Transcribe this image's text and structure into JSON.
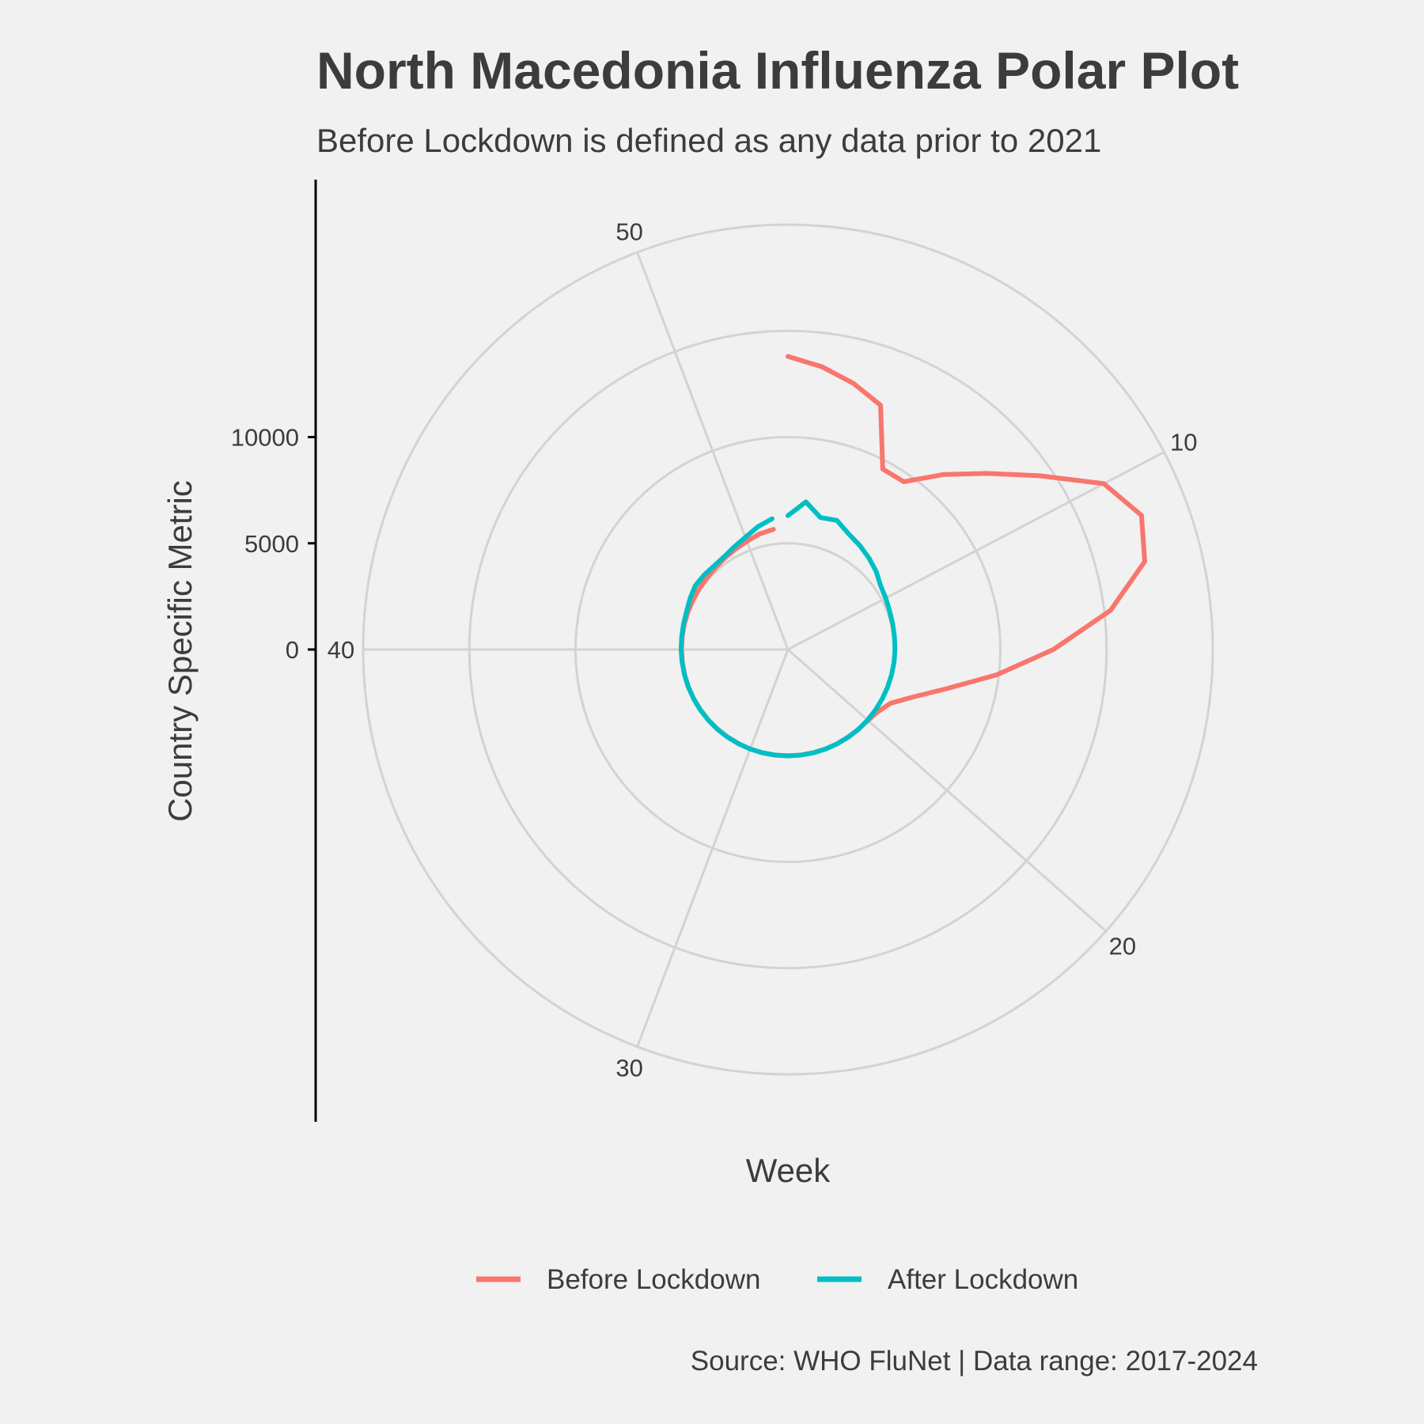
{
  "title": "North Macedonia Influenza Polar Plot",
  "subtitle": "Before Lockdown is defined as any data prior to 2021",
  "caption": "Source: WHO FluNet | Data range: 2017-2024",
  "chart_data": {
    "type": "line",
    "coord": "polar",
    "title": "North Macedonia Influenza Polar Plot",
    "subtitle": "Before Lockdown is defined as any data prior to 2021",
    "xlabel": "Week",
    "ylabel": "Country Specific Metric",
    "x_ticks": [
      10,
      20,
      30,
      40,
      50
    ],
    "y_ticks": [
      0,
      5000,
      10000
    ],
    "x_range": [
      1,
      53
    ],
    "y_range": [
      -5000,
      15000
    ],
    "grid": true,
    "legend_position": "bottom",
    "series": [
      {
        "name": "Before Lockdown",
        "color": "#F8766D",
        "points": [
          {
            "x": 1,
            "y": 8800
          },
          {
            "x": 2,
            "y": 8400
          },
          {
            "x": 3,
            "y": 7900
          },
          {
            "x": 4,
            "y": 7300
          },
          {
            "x": 5,
            "y": 4600
          },
          {
            "x": 6,
            "y": 4600
          },
          {
            "x": 7,
            "y": 6000
          },
          {
            "x": 8,
            "y": 7500
          },
          {
            "x": 9,
            "y": 9400
          },
          {
            "x": 10,
            "y": 11800
          },
          {
            "x": 11,
            "y": 12800
          },
          {
            "x": 12,
            "y": 12300
          },
          {
            "x": 13,
            "y": 10300
          },
          {
            "x": 14,
            "y": 7500
          },
          {
            "x": 15,
            "y": 4900
          },
          {
            "x": 16,
            "y": 2700
          },
          {
            "x": 17,
            "y": 1300
          },
          {
            "x": 18,
            "y": 450
          },
          {
            "x": 19,
            "y": 150
          },
          {
            "x": 20,
            "y": 30
          },
          {
            "x": 21,
            "y": 10
          },
          {
            "x": 22,
            "y": 5
          },
          {
            "x": 23,
            "y": 5
          },
          {
            "x": 24,
            "y": 5
          },
          {
            "x": 25,
            "y": 5
          },
          {
            "x": 26,
            "y": 5
          },
          {
            "x": 27,
            "y": 5
          },
          {
            "x": 28,
            "y": 5
          },
          {
            "x": 29,
            "y": 5
          },
          {
            "x": 30,
            "y": 5
          },
          {
            "x": 31,
            "y": 5
          },
          {
            "x": 32,
            "y": 5
          },
          {
            "x": 33,
            "y": 5
          },
          {
            "x": 34,
            "y": 5
          },
          {
            "x": 35,
            "y": 5
          },
          {
            "x": 36,
            "y": 5
          },
          {
            "x": 37,
            "y": 5
          },
          {
            "x": 38,
            "y": 5
          },
          {
            "x": 39,
            "y": 5
          },
          {
            "x": 40,
            "y": 10
          },
          {
            "x": 41,
            "y": 15
          },
          {
            "x": 42,
            "y": 20
          },
          {
            "x": 43,
            "y": 30
          },
          {
            "x": 44,
            "y": 40
          },
          {
            "x": 45,
            "y": 60
          },
          {
            "x": 46,
            "y": 90
          },
          {
            "x": 47,
            "y": 140
          },
          {
            "x": 48,
            "y": 230
          },
          {
            "x": 49,
            "y": 330
          },
          {
            "x": 50,
            "y": 450
          },
          {
            "x": 51,
            "y": 600
          },
          {
            "x": 52,
            "y": 700
          }
        ]
      },
      {
        "name": "After Lockdown",
        "color": "#00BFC4",
        "points": [
          {
            "x": 1,
            "y": 1300
          },
          {
            "x": 2,
            "y": 2000
          },
          {
            "x": 3,
            "y": 1400
          },
          {
            "x": 4,
            "y": 1500
          },
          {
            "x": 5,
            "y": 1150
          },
          {
            "x": 6,
            "y": 950
          },
          {
            "x": 7,
            "y": 750
          },
          {
            "x": 8,
            "y": 550
          },
          {
            "x": 9,
            "y": 300
          },
          {
            "x": 10,
            "y": 200
          },
          {
            "x": 11,
            "y": 120
          },
          {
            "x": 12,
            "y": 80
          },
          {
            "x": 13,
            "y": 50
          },
          {
            "x": 14,
            "y": 40
          },
          {
            "x": 15,
            "y": 30
          },
          {
            "x": 16,
            "y": 20
          },
          {
            "x": 17,
            "y": 15
          },
          {
            "x": 18,
            "y": 10
          },
          {
            "x": 19,
            "y": 10
          },
          {
            "x": 20,
            "y": 10
          },
          {
            "x": 21,
            "y": 10
          },
          {
            "x": 22,
            "y": 10
          },
          {
            "x": 23,
            "y": 10
          },
          {
            "x": 24,
            "y": 10
          },
          {
            "x": 25,
            "y": 10
          },
          {
            "x": 26,
            "y": 10
          },
          {
            "x": 27,
            "y": 10
          },
          {
            "x": 28,
            "y": 10
          },
          {
            "x": 29,
            "y": 10
          },
          {
            "x": 30,
            "y": 10
          },
          {
            "x": 31,
            "y": 10
          },
          {
            "x": 32,
            "y": 10
          },
          {
            "x": 33,
            "y": 10
          },
          {
            "x": 34,
            "y": 10
          },
          {
            "x": 35,
            "y": 10
          },
          {
            "x": 36,
            "y": 10
          },
          {
            "x": 37,
            "y": 10
          },
          {
            "x": 38,
            "y": 15
          },
          {
            "x": 39,
            "y": 20
          },
          {
            "x": 40,
            "y": 30
          },
          {
            "x": 41,
            "y": 40
          },
          {
            "x": 42,
            "y": 60
          },
          {
            "x": 43,
            "y": 100
          },
          {
            "x": 44,
            "y": 200
          },
          {
            "x": 45,
            "y": 300
          },
          {
            "x": 46,
            "y": 280
          },
          {
            "x": 47,
            "y": 250
          },
          {
            "x": 48,
            "y": 300
          },
          {
            "x": 49,
            "y": 450
          },
          {
            "x": 50,
            "y": 650
          },
          {
            "x": 51,
            "y": 950
          },
          {
            "x": 52,
            "y": 1200
          }
        ]
      }
    ]
  }
}
